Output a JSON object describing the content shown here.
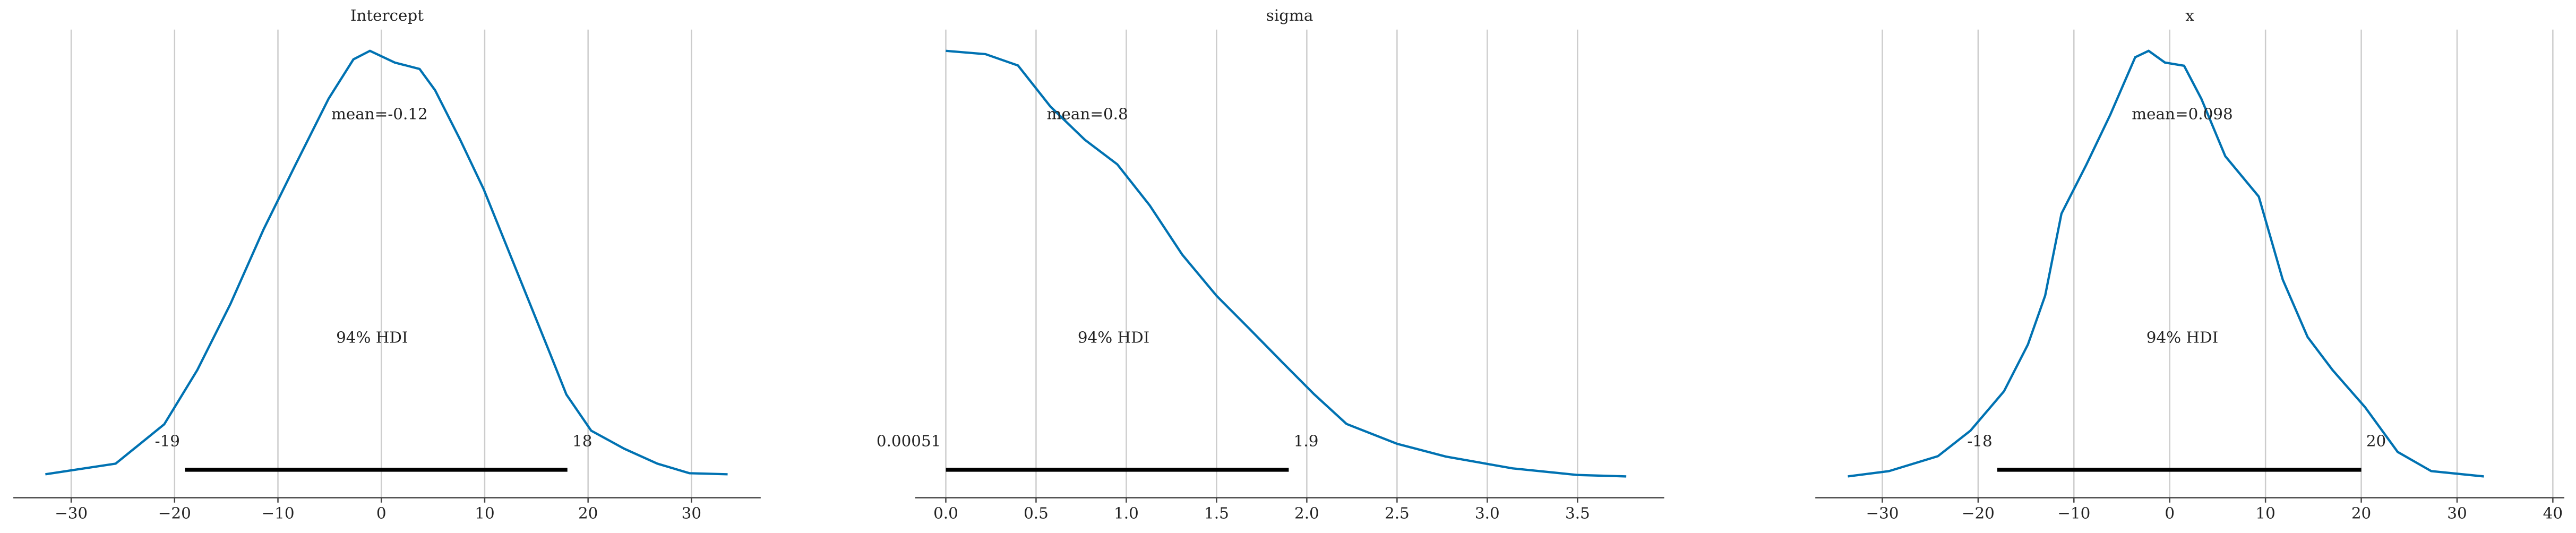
{
  "chart_data": [
    {
      "type": "density",
      "title": "Intercept",
      "color": "#0072b2",
      "grid": true,
      "mean_label": "mean=-0.12",
      "hdi_label": "94% HDI",
      "hdi": [
        -19,
        18
      ],
      "x": [
        -32.5,
        -25.7,
        -21.0,
        -17.8,
        -14.6,
        -11.4,
        -8.3,
        -5.1,
        -2.7,
        -1.1,
        1.3,
        3.7,
        5.2,
        7.6,
        9.9,
        13.1,
        16.3,
        17.9,
        20.3,
        23.5,
        26.7,
        29.8,
        33.5
      ],
      "values": [
        0.0002,
        0.0012,
        0.0049,
        0.01,
        0.0162,
        0.0232,
        0.0293,
        0.0355,
        0.0392,
        0.04,
        0.0389,
        0.0383,
        0.0363,
        0.0317,
        0.027,
        0.0193,
        0.0116,
        0.0077,
        0.0043,
        0.0026,
        0.0012,
        0.0003,
        0.0002
      ],
      "xlim": [
        -35.6,
        36.7
      ],
      "ylim": [
        -0.002,
        0.042
      ],
      "xticks": [
        {
          "value": -30,
          "label": "−30"
        },
        {
          "value": -20,
          "label": "−20"
        },
        {
          "value": -10,
          "label": "−10"
        },
        0,
        10,
        20,
        30
      ]
    },
    {
      "type": "density",
      "title": "sigma",
      "color": "#0072b2",
      "grid": true,
      "mean_label": "mean=0.8",
      "hdi_label": "94% HDI",
      "hdi": [
        0.00051,
        1.9
      ],
      "x": [
        0,
        0.22,
        0.4,
        0.58,
        0.77,
        0.95,
        1.13,
        1.31,
        1.5,
        1.68,
        1.86,
        2.04,
        2.22,
        2.5,
        2.77,
        3.14,
        3.5,
        3.77
      ],
      "values": [
        0.9,
        0.893,
        0.869,
        0.782,
        0.712,
        0.66,
        0.573,
        0.469,
        0.382,
        0.313,
        0.243,
        0.174,
        0.111,
        0.069,
        0.042,
        0.017,
        0.003,
        0
      ],
      "xlim": [
        -0.17,
        3.98
      ],
      "ylim": [
        -0.045,
        0.945
      ],
      "xticks": [
        {
          "value": 0,
          "label": "0.0"
        },
        0.5,
        {
          "value": 1,
          "label": "1.0"
        },
        1.5,
        {
          "value": 2,
          "label": "2.0"
        },
        2.5,
        {
          "value": 3,
          "label": "3.0"
        },
        3.5
      ]
    },
    {
      "type": "density",
      "title": "x",
      "color": "#0072b2",
      "grid": true,
      "mean_label": "mean=0.098",
      "hdi_label": "94% HDI",
      "hdi": [
        -18,
        20
      ],
      "x": [
        -33.6,
        -29.3,
        -24.2,
        -20.8,
        -17.3,
        -14.8,
        -13.0,
        -11.3,
        -8.7,
        -6.2,
        -3.6,
        -2.2,
        -0.5,
        1.5,
        3.3,
        5.8,
        9.3,
        11.8,
        14.4,
        17.0,
        20.4,
        23.8,
        27.3,
        32.8
      ],
      "values": [
        0,
        0.0005,
        0.0019,
        0.0043,
        0.008,
        0.0124,
        0.017,
        0.0247,
        0.0293,
        0.034,
        0.0394,
        0.04,
        0.0389,
        0.0386,
        0.0355,
        0.0301,
        0.0263,
        0.0185,
        0.0131,
        0.01,
        0.0065,
        0.0023,
        0.0005,
        0
      ],
      "xlim": [
        -37.0,
        41.2
      ],
      "ylim": [
        -0.002,
        0.042
      ],
      "xticks": [
        {
          "value": -30,
          "label": "−30"
        },
        {
          "value": -20,
          "label": "−20"
        },
        {
          "value": -10,
          "label": "−10"
        },
        0,
        10,
        20,
        30,
        40
      ]
    }
  ]
}
